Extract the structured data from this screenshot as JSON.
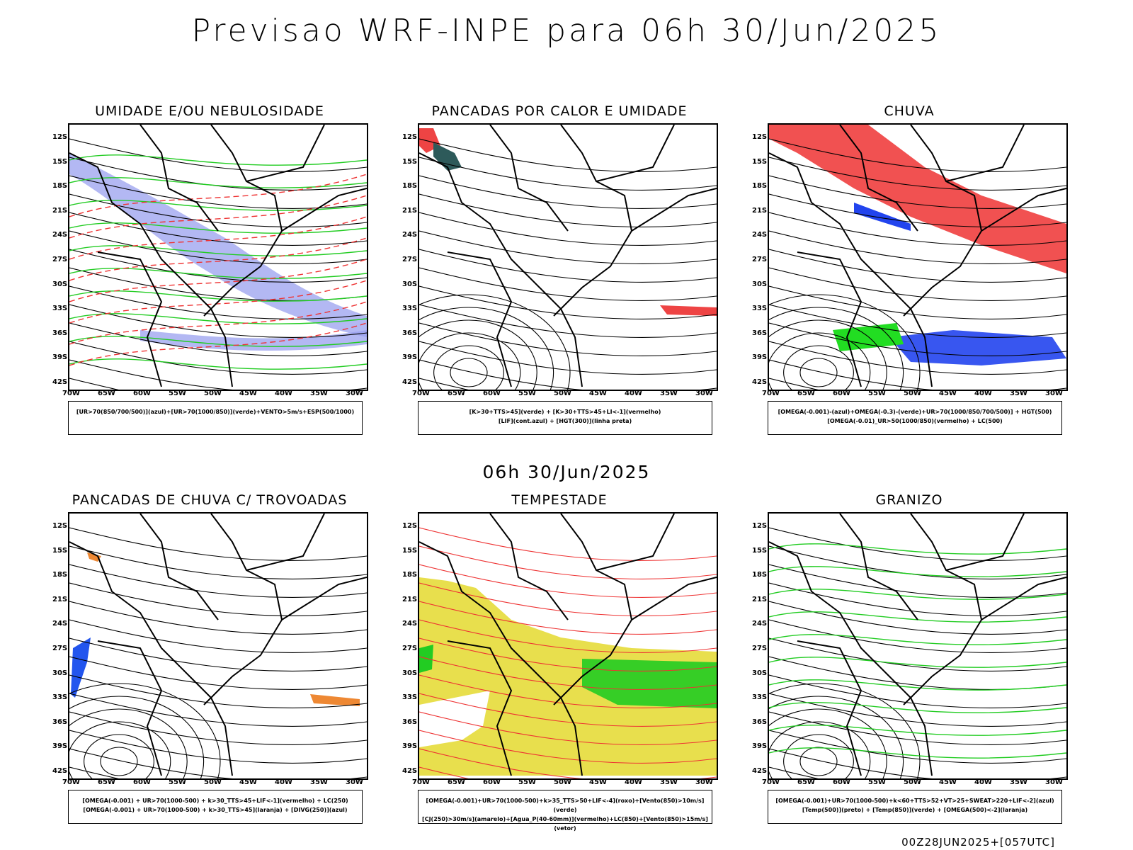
{
  "header": {
    "title": "Previsao WRF-INPE  para 06h 30/Jun/2025"
  },
  "mid_date": "06h 30/Jun/2025",
  "footer": "00Z28JUN2025+[057UTC]",
  "axes": {
    "lat_labels": [
      "12S",
      "15S",
      "18S",
      "21S",
      "24S",
      "27S",
      "30S",
      "33S",
      "36S",
      "39S",
      "42S"
    ],
    "lon_labels": [
      "70W",
      "65W",
      "60W",
      "55W",
      "50W",
      "45W",
      "40W",
      "35W",
      "30W"
    ]
  },
  "panels": [
    {
      "title": "UMIDADE E/OU NEBULOSIDADE",
      "legend": [
        "[UR>70(850/700/500)](azul)+[UR>70(1000/850)](verde)+VENTO>5m/s+ESP(500/1000)"
      ],
      "colors": {
        "primary": "#9aa0ef",
        "secondary": "#22cc22",
        "tertiary": "#ee3333"
      }
    },
    {
      "title": "PANCADAS POR CALOR E UMIDADE",
      "legend": [
        "[K>30+TTS>45](verde) + [K>30+TTS>45+LI<-1](vermelho)",
        "[LIF](cont.azul) + [HGT(300)](linha preta)"
      ],
      "colors": {
        "primary": "#2d5a5a",
        "secondary": "#ee4444",
        "tertiary": "#3355ee"
      }
    },
    {
      "title": "CHUVA",
      "legend": [
        "[OMEGA(-0.001)-(azul)+OMEGA(-0.3)-(verde)+UR>70(1000/850/700/500)] + HGT(500)",
        "[OMEGA(-0.01)_UR>50(1000/850)(vermelho) + LC(500)"
      ],
      "colors": {
        "primary": "#ee3333",
        "secondary": "#2244ee",
        "tertiary": "#22dd22"
      }
    },
    {
      "title": "PANCADAS DE CHUVA C/ TROVOADAS",
      "legend": [
        "[OMEGA(-0.001) + UR>70(1000-500) + k>30_TTS>45+LIF<-1](vermelho) + LC(250)",
        "[OMEGA(-0.001) + UR>70(1000-500) + k>30_TTS>45](laranja) + [DIVG(250)](azul)"
      ],
      "colors": {
        "primary": "#ee8833",
        "secondary": "#2255ee",
        "tertiary": "#ee3333"
      }
    },
    {
      "title": "TEMPESTADE",
      "legend": [
        "[OMEGA(-0.001)+UR>70(1000-500)+k>35_TTS>50+LIF<-4](roxo)+[Vento(850)>10m/s](verde)",
        "[CJ(250)>30m/s](amarelo)+[Agua_P(40-60mm)](vermelho)+LC(850)+[Vento(850)>15m/s](vetor)"
      ],
      "colors": {
        "primary": "#e6dc3a",
        "secondary": "#22cc22",
        "tertiary": "#ee3333"
      }
    },
    {
      "title": "GRANIZO",
      "legend": [
        "[OMEGA(-0.001)+UR>70(1000-500)+k<60+TTS>52+VT>25+SWEAT>220+LIF<-2](azul)",
        "[Temp(500)](preto) + [Temp(850)](verde) + [OMEGA(500)<-2](laranja)"
      ],
      "colors": {
        "primary": "#22cc22",
        "secondary": "#ee8833",
        "tertiary": "#000000"
      }
    }
  ]
}
